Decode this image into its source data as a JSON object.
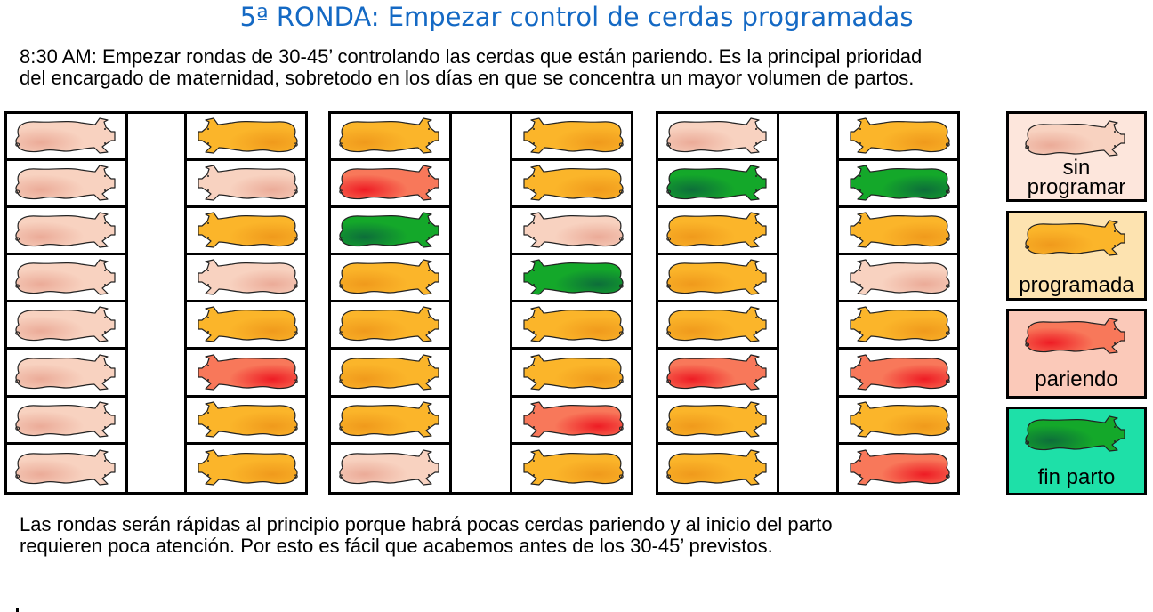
{
  "title": "5ª RONDA: Empezar control de cerdas programadas",
  "intro": {
    "line1": "8:30 AM: Empezar rondas de 30-45’ controlando las cerdas que están pariendo. Es la principal prioridad",
    "line2": "del encargado de maternidad, sobretodo en los días en que se concentra un mayor volumen de partos."
  },
  "outro": {
    "line1": "Las rondas serán rápidas al principio porque habrá pocas cerdas pariendo y al inicio del parto",
    "line2": "requieren poca atención. Por esto es fácil que acabemos antes de los 30-45’ previstos."
  },
  "statuses": {
    "sin": {
      "label_lines": [
        "sin",
        "programar"
      ],
      "legend_bg": "#fde6dc",
      "body_light": "#f8d2c0",
      "body_dark": "#ebab98"
    },
    "prog": {
      "label_lines": [
        "programada"
      ],
      "legend_bg": "#fde3b0",
      "body_light": "#fbb52a",
      "body_dark": "#f09a1c"
    },
    "pariendo": {
      "label_lines": [
        "pariendo"
      ],
      "legend_bg": "#fbc9b9",
      "body_light": "#f8785a",
      "body_dark": "#ee1c24"
    },
    "fin": {
      "label_lines": [
        "fin parto"
      ],
      "legend_bg": "#1ee0a8",
      "body_light": "#14a82a",
      "body_dark": "#0d6e3a"
    }
  },
  "legend": [
    {
      "status": "sin",
      "label": "sin\nprogramar"
    },
    {
      "status": "prog",
      "label": "programada"
    },
    {
      "status": "pariendo",
      "label": "pariendo"
    },
    {
      "status": "fin",
      "label": "fin parto"
    }
  ],
  "blocks": [
    {
      "left": [
        "sin",
        "sin",
        "sin",
        "sin",
        "sin",
        "sin",
        "sin",
        "sin"
      ],
      "right": [
        "prog",
        "sin",
        "prog",
        "sin",
        "prog",
        "pariendo",
        "prog",
        "prog"
      ]
    },
    {
      "left": [
        "prog",
        "pariendo",
        "fin",
        "prog",
        "prog",
        "prog",
        "prog",
        "sin"
      ],
      "right": [
        "prog",
        "prog",
        "sin",
        "fin",
        "prog",
        "prog",
        "pariendo",
        "prog"
      ]
    },
    {
      "left": [
        "sin",
        "fin",
        "prog",
        "prog",
        "prog",
        "pariendo",
        "prog",
        "prog"
      ],
      "right": [
        "prog",
        "fin",
        "prog",
        "sin",
        "prog",
        "pariendo",
        "prog",
        "pariendo"
      ]
    }
  ]
}
